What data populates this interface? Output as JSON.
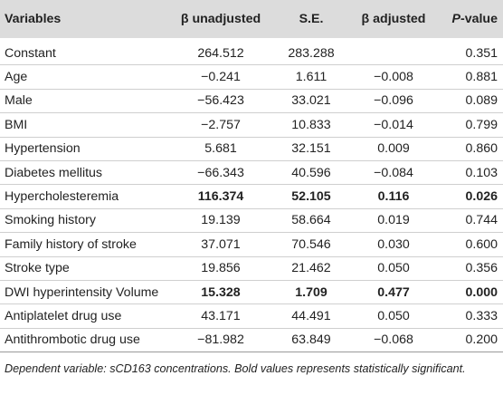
{
  "headers": {
    "variables": "Variables",
    "beta_unadjusted": "β unadjusted",
    "se": "S.E.",
    "beta_adjusted": "β adjusted",
    "p_prefix": "P",
    "p_suffix": "-value"
  },
  "rows": [
    {
      "variable": "Constant",
      "beta_unadj": "264.512",
      "se": "283.288",
      "beta_adj": "",
      "p": "0.351",
      "bold": false
    },
    {
      "variable": "Age",
      "beta_unadj": "−0.241",
      "se": "1.611",
      "beta_adj": "−0.008",
      "p": "0.881",
      "bold": false
    },
    {
      "variable": "Male",
      "beta_unadj": "−56.423",
      "se": "33.021",
      "beta_adj": "−0.096",
      "p": "0.089",
      "bold": false
    },
    {
      "variable": "BMI",
      "beta_unadj": "−2.757",
      "se": "10.833",
      "beta_adj": "−0.014",
      "p": "0.799",
      "bold": false
    },
    {
      "variable": "Hypertension",
      "beta_unadj": "5.681",
      "se": "32.151",
      "beta_adj": "0.009",
      "p": "0.860",
      "bold": false
    },
    {
      "variable": "Diabetes mellitus",
      "beta_unadj": "−66.343",
      "se": "40.596",
      "beta_adj": "−0.084",
      "p": "0.103",
      "bold": false
    },
    {
      "variable": "Hypercholesteremia",
      "beta_unadj": "116.374",
      "se": "52.105",
      "beta_adj": "0.116",
      "p": "0.026",
      "bold": true
    },
    {
      "variable": "Smoking history",
      "beta_unadj": "19.139",
      "se": "58.664",
      "beta_adj": "0.019",
      "p": "0.744",
      "bold": false
    },
    {
      "variable": "Family history of stroke",
      "beta_unadj": "37.071",
      "se": "70.546",
      "beta_adj": "0.030",
      "p": "0.600",
      "bold": false
    },
    {
      "variable": "Stroke type",
      "beta_unadj": "19.856",
      "se": "21.462",
      "beta_adj": "0.050",
      "p": "0.356",
      "bold": false
    },
    {
      "variable": "DWI hyperintensity Volume",
      "beta_unadj": "15.328",
      "se": "1.709",
      "beta_adj": "0.477",
      "p": "0.000",
      "bold": true
    },
    {
      "variable": "Antiplatelet drug use",
      "beta_unadj": "43.171",
      "se": "44.491",
      "beta_adj": "0.050",
      "p": "0.333",
      "bold": false
    },
    {
      "variable": "Antithrombotic drug use",
      "beta_unadj": "−81.982",
      "se": "63.849",
      "beta_adj": "−0.068",
      "p": "0.200",
      "bold": false
    }
  ],
  "footnote": "Dependent variable: sCD163 concentrations. Bold values represents statistically significant."
}
